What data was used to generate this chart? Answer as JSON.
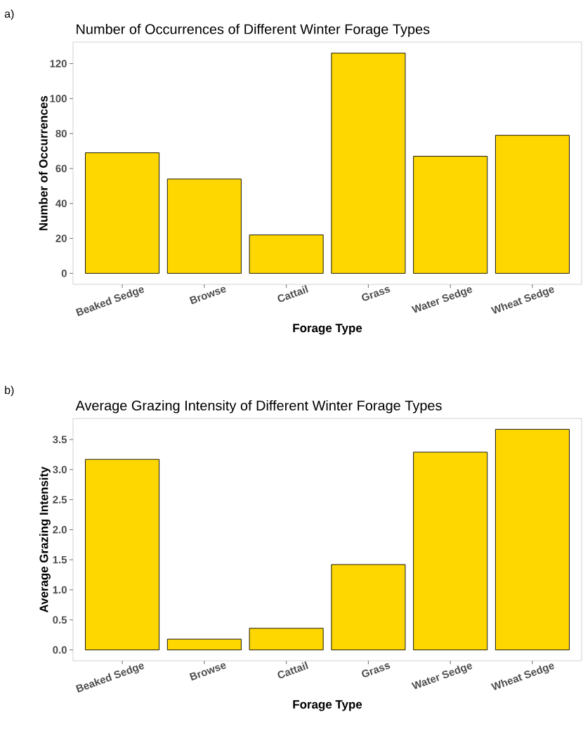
{
  "chart_data": [
    {
      "type": "bar",
      "title": "Number of Occurrences of Different Winter Forage Types",
      "xlabel": "Forage Type",
      "ylabel": "Number of Occurrences",
      "categories": [
        "Beaked Sedge",
        "Browse",
        "Cattail",
        "Grass",
        "Water Sedge",
        "Wheat Sedge"
      ],
      "values": [
        69,
        54,
        22,
        126,
        67,
        79
      ],
      "color": "#ffd700",
      "ylim": [
        -6.3,
        132.3
      ],
      "yticks": [
        0,
        20,
        40,
        60,
        80,
        100,
        120
      ],
      "annotations": [
        "a)"
      ]
    },
    {
      "type": "bar",
      "title": "Average Grazing Intensity of Different Winter Forage Types",
      "xlabel": "Forage Type",
      "ylabel": "Average Grazing Intensity",
      "categories": [
        "Beaked Sedge",
        "Browse",
        "Cattail",
        "Grass",
        "Water Sedge",
        "Wheat Sedge"
      ],
      "values": [
        3.17,
        0.18,
        0.36,
        1.42,
        3.29,
        3.67
      ],
      "color": "#ffd700",
      "ylim": [
        -0.18,
        3.85
      ],
      "yticks": [
        {
          "value": 0,
          "label": "0.0"
        },
        {
          "value": 0.5,
          "label": "0.5"
        },
        {
          "value": 1,
          "label": "1.0"
        },
        {
          "value": 1.5,
          "label": "1.5"
        },
        {
          "value": 2,
          "label": "2.0"
        },
        {
          "value": 2.5,
          "label": "2.5"
        },
        {
          "value": 3,
          "label": "3.0"
        },
        {
          "value": 3.5,
          "label": "3.5"
        }
      ],
      "annotations": [
        "b)"
      ]
    }
  ]
}
